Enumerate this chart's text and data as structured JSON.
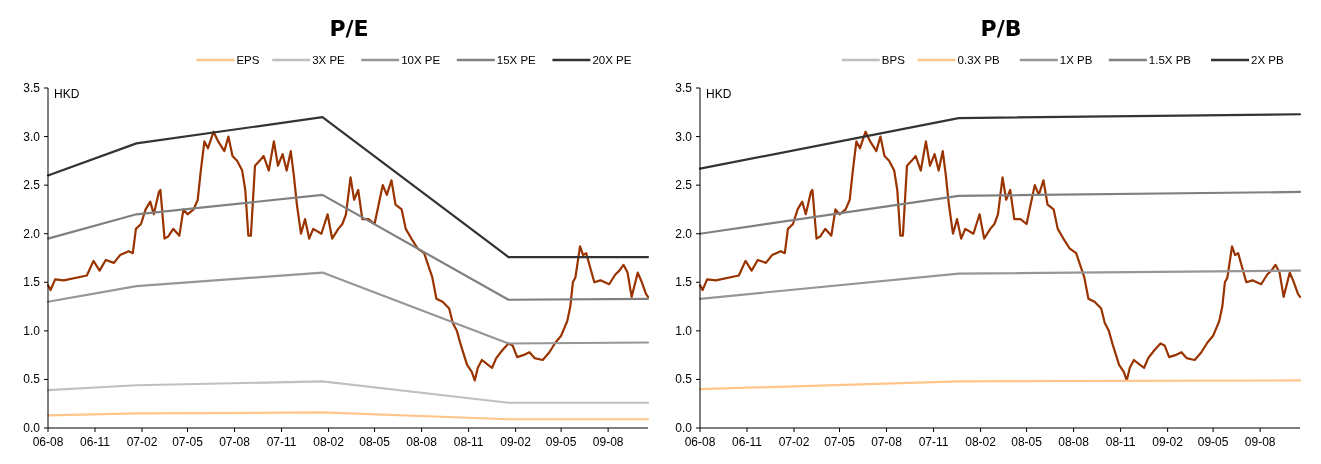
{
  "chart_data": [
    {
      "type": "line",
      "title": "P/E",
      "ylabel": "HKD",
      "legend": "top",
      "line_style": "solid",
      "grid": false,
      "xlim": [
        "2006-08-01",
        "2009-10-18"
      ],
      "ylim": [
        0,
        3.5
      ],
      "xticks": [
        {
          "value": "2006-08",
          "label": "06-08"
        },
        {
          "value": "2006-11",
          "label": "06-11"
        },
        {
          "value": "2007-02",
          "label": "07-02"
        },
        {
          "value": "2007-05",
          "label": "07-05"
        },
        {
          "value": "2007-08",
          "label": "07-08"
        },
        {
          "value": "2007-11",
          "label": "07-11"
        },
        {
          "value": "2008-02",
          "label": "08-02"
        },
        {
          "value": "2008-05",
          "label": "08-05"
        },
        {
          "value": "2008-08",
          "label": "08-08"
        },
        {
          "value": "2008-11",
          "label": "08-11"
        },
        {
          "value": "2009-02",
          "label": "09-02"
        },
        {
          "value": "2009-05",
          "label": "09-05"
        },
        {
          "value": "2009-08",
          "label": "09-08"
        }
      ],
      "yticks": [
        {
          "value": 0,
          "label": "0.0"
        },
        {
          "value": 0.5,
          "label": "0.5"
        },
        {
          "value": 1,
          "label": "1.0"
        },
        {
          "value": 1.5,
          "label": "1.5"
        },
        {
          "value": 2,
          "label": "2.0"
        },
        {
          "value": 2.5,
          "label": "2.5"
        },
        {
          "value": 3,
          "label": "3.0"
        },
        {
          "value": 3.5,
          "label": "3.5"
        }
      ],
      "series": [
        {
          "color": "#993300",
          "x": [
            "2006-08-01",
            "2006-08-06",
            "2006-08-15",
            "2006-09-01",
            "2006-10-16",
            "2006-10-29",
            "2006-11-10",
            "2006-11-22",
            "2006-12-08",
            "2006-12-20",
            "2007-01-06",
            "2007-01-14",
            "2007-01-20",
            "2007-01-30",
            "2007-02-08",
            "2007-02-17",
            "2007-02-24",
            "2007-03-06",
            "2007-03-09",
            "2007-03-17",
            "2007-03-24",
            "2007-04-03",
            "2007-04-15",
            "2007-04-23",
            "2007-05-01",
            "2007-05-13",
            "2007-05-21",
            "2007-05-27",
            "2007-06-03",
            "2007-06-10",
            "2007-06-21",
            "2007-06-30",
            "2007-07-12",
            "2007-07-20",
            "2007-07-28",
            "2007-08-06",
            "2007-08-16",
            "2007-08-22",
            "2007-08-28",
            "2007-09-02",
            "2007-09-10",
            "2007-09-19",
            "2007-09-27",
            "2007-10-07",
            "2007-10-17",
            "2007-10-25",
            "2007-11-03",
            "2007-11-11",
            "2007-11-19",
            "2007-11-25",
            "2007-12-01",
            "2007-12-09",
            "2007-12-17",
            "2007-12-25",
            "2008-01-02",
            "2008-01-18",
            "2008-01-30",
            "2008-02-08",
            "2008-02-20",
            "2008-02-28",
            "2008-03-06",
            "2008-03-15",
            "2008-03-22",
            "2008-03-30",
            "2008-04-07",
            "2008-04-19",
            "2008-05-01",
            "2008-05-09",
            "2008-05-17",
            "2008-05-25",
            "2008-06-03",
            "2008-06-11",
            "2008-06-23",
            "2008-07-01",
            "2008-07-12",
            "2008-07-24",
            "2008-08-06",
            "2008-08-22",
            "2008-08-30",
            "2008-09-11",
            "2008-09-24",
            "2008-10-01",
            "2008-10-09",
            "2008-10-17",
            "2008-10-29",
            "2008-11-07",
            "2008-11-13",
            "2008-11-19",
            "2008-11-27",
            "2008-12-09",
            "2008-12-17",
            "2008-12-25",
            "2009-01-06",
            "2009-01-18",
            "2009-01-26",
            "2009-02-04",
            "2009-02-16",
            "2009-02-28",
            "2009-03-10",
            "2009-03-26",
            "2009-04-08",
            "2009-04-20",
            "2009-05-01",
            "2009-05-13",
            "2009-05-19",
            "2009-05-24",
            "2009-05-29",
            "2009-06-07",
            "2009-06-13",
            "2009-06-19",
            "2009-06-27",
            "2009-07-05",
            "2009-07-17",
            "2009-08-03",
            "2009-08-15",
            "2009-08-23",
            "2009-08-31",
            "2009-09-08",
            "2009-09-16",
            "2009-09-28",
            "2009-10-06",
            "2009-10-14",
            "2009-10-18"
          ],
          "values": [
            1.47,
            1.42,
            1.53,
            1.52,
            1.57,
            1.72,
            1.62,
            1.73,
            1.7,
            1.78,
            1.82,
            1.8,
            2.05,
            2.1,
            2.25,
            2.33,
            2.2,
            2.43,
            2.45,
            1.95,
            1.97,
            2.05,
            1.98,
            2.25,
            2.2,
            2.25,
            2.35,
            2.65,
            2.95,
            2.88,
            3.05,
            2.95,
            2.85,
            3.0,
            2.8,
            2.75,
            2.65,
            2.45,
            1.98,
            1.98,
            2.7,
            2.75,
            2.8,
            2.65,
            2.95,
            2.7,
            2.82,
            2.65,
            2.85,
            2.6,
            2.3,
            2.0,
            2.15,
            1.95,
            2.05,
            2.0,
            2.2,
            1.95,
            2.05,
            2.1,
            2.2,
            2.58,
            2.35,
            2.45,
            2.15,
            2.15,
            2.1,
            2.3,
            2.5,
            2.4,
            2.55,
            2.3,
            2.25,
            2.05,
            1.95,
            1.85,
            1.8,
            1.55,
            1.33,
            1.3,
            1.23,
            1.08,
            1.0,
            0.85,
            0.65,
            0.58,
            0.49,
            0.62,
            0.7,
            0.65,
            0.62,
            0.72,
            0.8,
            0.87,
            0.85,
            0.73,
            0.75,
            0.78,
            0.72,
            0.7,
            0.78,
            0.88,
            0.95,
            1.1,
            1.25,
            1.5,
            1.55,
            1.87,
            1.78,
            1.8,
            1.65,
            1.5,
            1.52,
            1.48,
            1.58,
            1.62,
            1.68,
            1.6,
            1.35,
            1.6,
            1.5,
            1.38,
            1.35
          ]
        },
        {
          "name": "EPS",
          "color": "#ffc58a",
          "x": [
            "2006-08-01",
            "2007-01-21",
            "2008-01-20",
            "2009-01-18",
            "2009-10-18"
          ],
          "values": [
            0.13,
            0.15,
            0.16,
            0.09,
            0.09
          ]
        },
        {
          "name": "3X PE",
          "color": "#c0c0c0",
          "x": [
            "2006-08-01",
            "2007-01-21",
            "2008-01-20",
            "2009-01-18",
            "2009-10-18"
          ],
          "values": [
            0.39,
            0.44,
            0.48,
            0.26,
            0.26
          ]
        },
        {
          "name": "10X PE",
          "color": "#969696",
          "x": [
            "2006-08-01",
            "2007-01-21",
            "2008-01-20",
            "2009-01-18",
            "2009-10-18"
          ],
          "values": [
            1.3,
            1.46,
            1.6,
            0.87,
            0.88
          ]
        },
        {
          "name": "15X PE",
          "color": "#808080",
          "x": [
            "2006-08-01",
            "2007-01-21",
            "2008-01-20",
            "2009-01-18",
            "2009-10-18"
          ],
          "values": [
            1.95,
            2.2,
            2.4,
            1.32,
            1.33
          ]
        },
        {
          "name": "20X PE",
          "color": "#333333",
          "x": [
            "2006-08-01",
            "2007-01-21",
            "2008-01-20",
            "2009-01-18",
            "2009-10-18"
          ],
          "values": [
            2.6,
            2.93,
            3.2,
            1.76,
            1.76
          ]
        }
      ]
    },
    {
      "type": "line",
      "title": "P/B",
      "ylabel": "HKD",
      "legend": "top",
      "line_style": "solid",
      "grid": false,
      "xlim": [
        "2006-08-01",
        "2009-10-18"
      ],
      "ylim": [
        0,
        3.5
      ],
      "xticks": [
        {
          "value": "2006-08",
          "label": "06-08"
        },
        {
          "value": "2006-11",
          "label": "06-11"
        },
        {
          "value": "2007-02",
          "label": "07-02"
        },
        {
          "value": "2007-05",
          "label": "07-05"
        },
        {
          "value": "2007-08",
          "label": "07-08"
        },
        {
          "value": "2007-11",
          "label": "07-11"
        },
        {
          "value": "2008-02",
          "label": "08-02"
        },
        {
          "value": "2008-05",
          "label": "08-05"
        },
        {
          "value": "2008-08",
          "label": "08-08"
        },
        {
          "value": "2008-11",
          "label": "08-11"
        },
        {
          "value": "2009-02",
          "label": "09-02"
        },
        {
          "value": "2009-05",
          "label": "09-05"
        },
        {
          "value": "2009-08",
          "label": "09-08"
        }
      ],
      "yticks": [
        {
          "value": 0,
          "label": "0.0"
        },
        {
          "value": 0.5,
          "label": "0.5"
        },
        {
          "value": 1,
          "label": "1.0"
        },
        {
          "value": 1.5,
          "label": "1.5"
        },
        {
          "value": 2,
          "label": "2.0"
        },
        {
          "value": 2.5,
          "label": "2.5"
        },
        {
          "value": 3,
          "label": "3.0"
        },
        {
          "value": 3.5,
          "label": "3.5"
        }
      ],
      "series": [
        {
          "color": "#993300",
          "x": [
            "2006-08-01",
            "2006-08-06",
            "2006-08-15",
            "2006-09-01",
            "2006-10-16",
            "2006-10-29",
            "2006-11-10",
            "2006-11-22",
            "2006-12-08",
            "2006-12-20",
            "2007-01-06",
            "2007-01-14",
            "2007-01-20",
            "2007-01-30",
            "2007-02-08",
            "2007-02-17",
            "2007-02-24",
            "2007-03-06",
            "2007-03-09",
            "2007-03-17",
            "2007-03-24",
            "2007-04-03",
            "2007-04-15",
            "2007-04-23",
            "2007-05-01",
            "2007-05-13",
            "2007-05-21",
            "2007-05-27",
            "2007-06-03",
            "2007-06-10",
            "2007-06-21",
            "2007-06-30",
            "2007-07-12",
            "2007-07-20",
            "2007-07-28",
            "2007-08-06",
            "2007-08-16",
            "2007-08-22",
            "2007-08-28",
            "2007-09-02",
            "2007-09-10",
            "2007-09-19",
            "2007-09-27",
            "2007-10-07",
            "2007-10-17",
            "2007-10-25",
            "2007-11-03",
            "2007-11-11",
            "2007-11-19",
            "2007-11-25",
            "2007-12-01",
            "2007-12-09",
            "2007-12-17",
            "2007-12-25",
            "2008-01-02",
            "2008-01-18",
            "2008-01-30",
            "2008-02-08",
            "2008-02-20",
            "2008-02-28",
            "2008-03-06",
            "2008-03-15",
            "2008-03-22",
            "2008-03-30",
            "2008-04-07",
            "2008-04-19",
            "2008-05-01",
            "2008-05-09",
            "2008-05-17",
            "2008-05-25",
            "2008-06-03",
            "2008-06-11",
            "2008-06-23",
            "2008-07-01",
            "2008-07-12",
            "2008-07-24",
            "2008-08-06",
            "2008-08-22",
            "2008-08-30",
            "2008-09-11",
            "2008-09-24",
            "2008-10-01",
            "2008-10-09",
            "2008-10-17",
            "2008-10-29",
            "2008-11-07",
            "2008-11-13",
            "2008-11-19",
            "2008-11-27",
            "2008-12-09",
            "2008-12-17",
            "2008-12-25",
            "2009-01-06",
            "2009-01-18",
            "2009-01-26",
            "2009-02-04",
            "2009-02-16",
            "2009-02-28",
            "2009-03-10",
            "2009-03-26",
            "2009-04-08",
            "2009-04-20",
            "2009-05-01",
            "2009-05-13",
            "2009-05-19",
            "2009-05-24",
            "2009-05-29",
            "2009-06-07",
            "2009-06-13",
            "2009-06-19",
            "2009-06-27",
            "2009-07-05",
            "2009-07-17",
            "2009-08-03",
            "2009-08-15",
            "2009-08-23",
            "2009-08-31",
            "2009-09-08",
            "2009-09-16",
            "2009-09-28",
            "2009-10-06",
            "2009-10-14",
            "2009-10-18"
          ],
          "values": [
            1.47,
            1.42,
            1.53,
            1.52,
            1.57,
            1.72,
            1.62,
            1.73,
            1.7,
            1.78,
            1.82,
            1.8,
            2.05,
            2.1,
            2.25,
            2.33,
            2.2,
            2.43,
            2.45,
            1.95,
            1.97,
            2.05,
            1.98,
            2.25,
            2.2,
            2.25,
            2.35,
            2.65,
            2.95,
            2.88,
            3.05,
            2.95,
            2.85,
            3.0,
            2.8,
            2.75,
            2.65,
            2.45,
            1.98,
            1.98,
            2.7,
            2.75,
            2.8,
            2.65,
            2.95,
            2.7,
            2.82,
            2.65,
            2.85,
            2.6,
            2.3,
            2.0,
            2.15,
            1.95,
            2.05,
            2.0,
            2.2,
            1.95,
            2.05,
            2.1,
            2.2,
            2.58,
            2.35,
            2.45,
            2.15,
            2.15,
            2.1,
            2.3,
            2.5,
            2.4,
            2.55,
            2.3,
            2.25,
            2.05,
            1.95,
            1.85,
            1.8,
            1.55,
            1.33,
            1.3,
            1.23,
            1.08,
            1.0,
            0.85,
            0.65,
            0.58,
            0.49,
            0.62,
            0.7,
            0.65,
            0.62,
            0.72,
            0.8,
            0.87,
            0.85,
            0.73,
            0.75,
            0.78,
            0.72,
            0.7,
            0.78,
            0.88,
            0.95,
            1.1,
            1.25,
            1.5,
            1.55,
            1.87,
            1.78,
            1.8,
            1.65,
            1.5,
            1.52,
            1.48,
            1.58,
            1.62,
            1.68,
            1.6,
            1.35,
            1.6,
            1.5,
            1.38,
            1.35
          ]
        },
        {
          "name": "BPS",
          "color": "#c0c0c0"
        },
        {
          "name": "0.3X PB",
          "color": "#ffc58a",
          "x": [
            "2006-08-01",
            "2007-12-20",
            "2009-10-18"
          ],
          "values": [
            0.4,
            0.48,
            0.49
          ]
        },
        {
          "name": "1X PB",
          "color": "#969696",
          "x": [
            "2006-08-01",
            "2007-12-20",
            "2009-10-18"
          ],
          "values": [
            1.33,
            1.59,
            1.62
          ]
        },
        {
          "name": "1.5X PB",
          "color": "#808080",
          "x": [
            "2006-08-01",
            "2007-12-20",
            "2009-10-18"
          ],
          "values": [
            2.0,
            2.39,
            2.43
          ]
        },
        {
          "name": "2X PB",
          "color": "#333333",
          "x": [
            "2006-08-01",
            "2007-12-20",
            "2009-10-18"
          ],
          "values": [
            2.67,
            3.19,
            3.23
          ]
        }
      ]
    }
  ]
}
